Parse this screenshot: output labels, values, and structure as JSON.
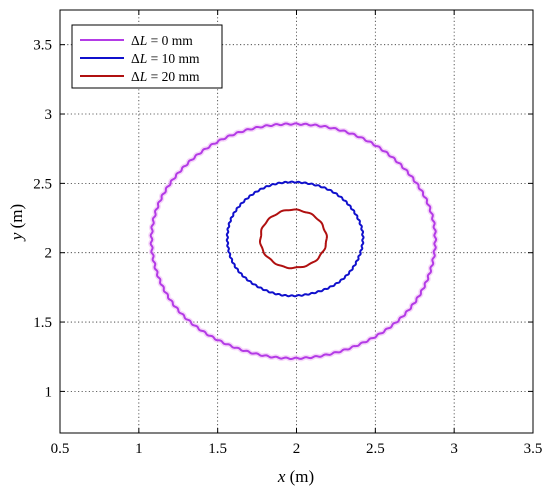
{
  "chart_data": {
    "type": "line",
    "xlabel": {
      "var": "x",
      "unit": " (m)"
    },
    "ylabel": {
      "var": "y",
      "unit": " (m)"
    },
    "xlim": [
      0.5,
      3.5
    ],
    "ylim": [
      0.7,
      3.75
    ],
    "xticks": [
      "0.5",
      "1",
      "1.5",
      "2",
      "2.5",
      "3",
      "3.5"
    ],
    "yticks": [
      "1",
      "1.5",
      "2",
      "2.5",
      "3",
      "3.5"
    ],
    "xtick_values": [
      0.5,
      1,
      1.5,
      2,
      2.5,
      3,
      3.5
    ],
    "ytick_values": [
      1,
      1.5,
      2,
      2.5,
      3,
      3.5
    ],
    "grid": "dotted",
    "legend_position": "top-left",
    "series": [
      {
        "name": "Δ L = 0 mm",
        "legend": {
          "delta": "Δ",
          "var": "L",
          "rest": " = 0 mm"
        },
        "color": "#B33BE6",
        "shape": "closed curve",
        "center": [
          1.98,
          2.08
        ],
        "x_range": [
          1.08,
          2.88
        ],
        "y_range": [
          1.24,
          2.93
        ]
      },
      {
        "name": "Δ L = 10 mm",
        "legend": {
          "delta": "Δ",
          "var": "L",
          "rest": " = 10 mm"
        },
        "color": "#1010CC",
        "shape": "closed curve",
        "center": [
          1.98,
          2.1
        ],
        "x_range": [
          1.56,
          2.42
        ],
        "y_range": [
          1.69,
          2.51
        ]
      },
      {
        "name": "Δ L = 20 mm",
        "legend": {
          "delta": "Δ",
          "var": "L",
          "rest": " = 20 mm"
        },
        "color": "#B01010",
        "shape": "closed curve",
        "center": [
          1.98,
          2.1
        ],
        "x_range": [
          1.77,
          2.19
        ],
        "y_range": [
          1.89,
          2.31
        ]
      }
    ]
  }
}
